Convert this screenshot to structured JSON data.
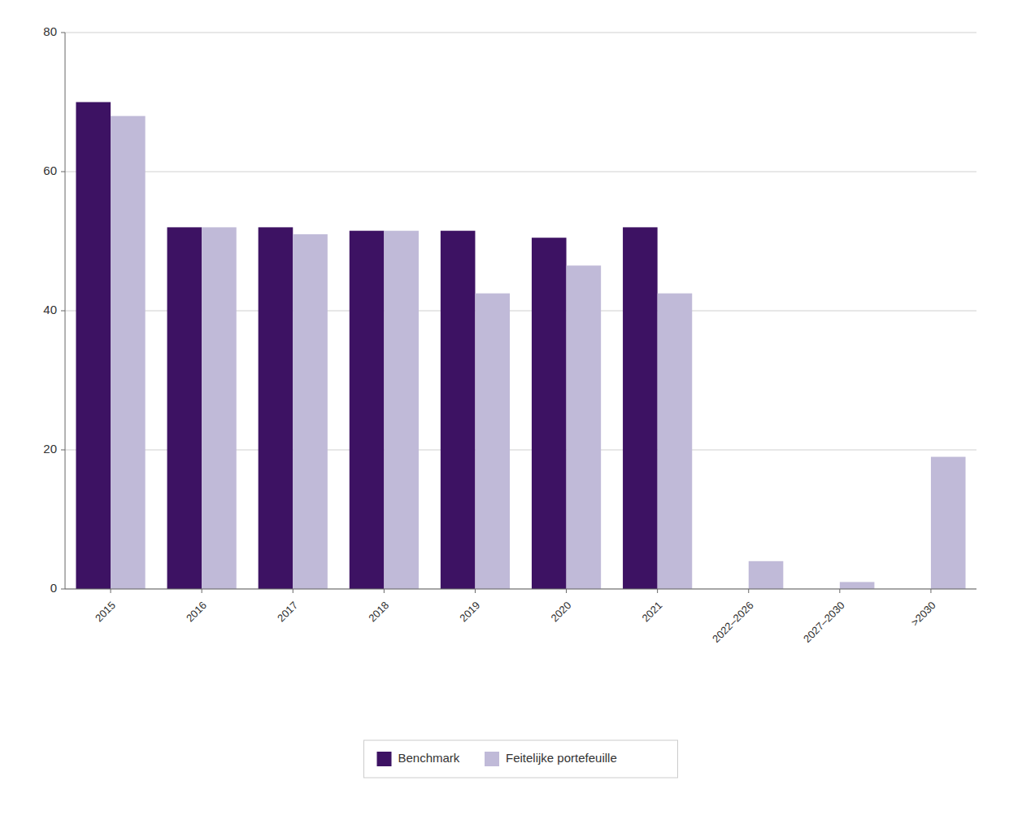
{
  "chart_data": {
    "type": "bar",
    "categories": [
      "2015",
      "2016",
      "2017",
      "2018",
      "2019",
      "2020",
      "2021",
      "2022–2026",
      "2027–2030",
      ">2030"
    ],
    "series": [
      {
        "name": "Benchmark",
        "color": "#3d1263",
        "values": [
          70,
          52,
          52,
          51.5,
          51.5,
          50.5,
          52,
          0,
          0,
          0
        ]
      },
      {
        "name": "Feitelijke portefeuille",
        "color": "#c0bad8",
        "values": [
          68,
          52,
          51,
          51.5,
          42.5,
          46.5,
          42.5,
          4,
          1,
          19
        ]
      }
    ],
    "ylim": [
      0,
      80
    ],
    "yticks": [
      0,
      20,
      40,
      60,
      80
    ],
    "grid": true,
    "legend": "bottom"
  }
}
